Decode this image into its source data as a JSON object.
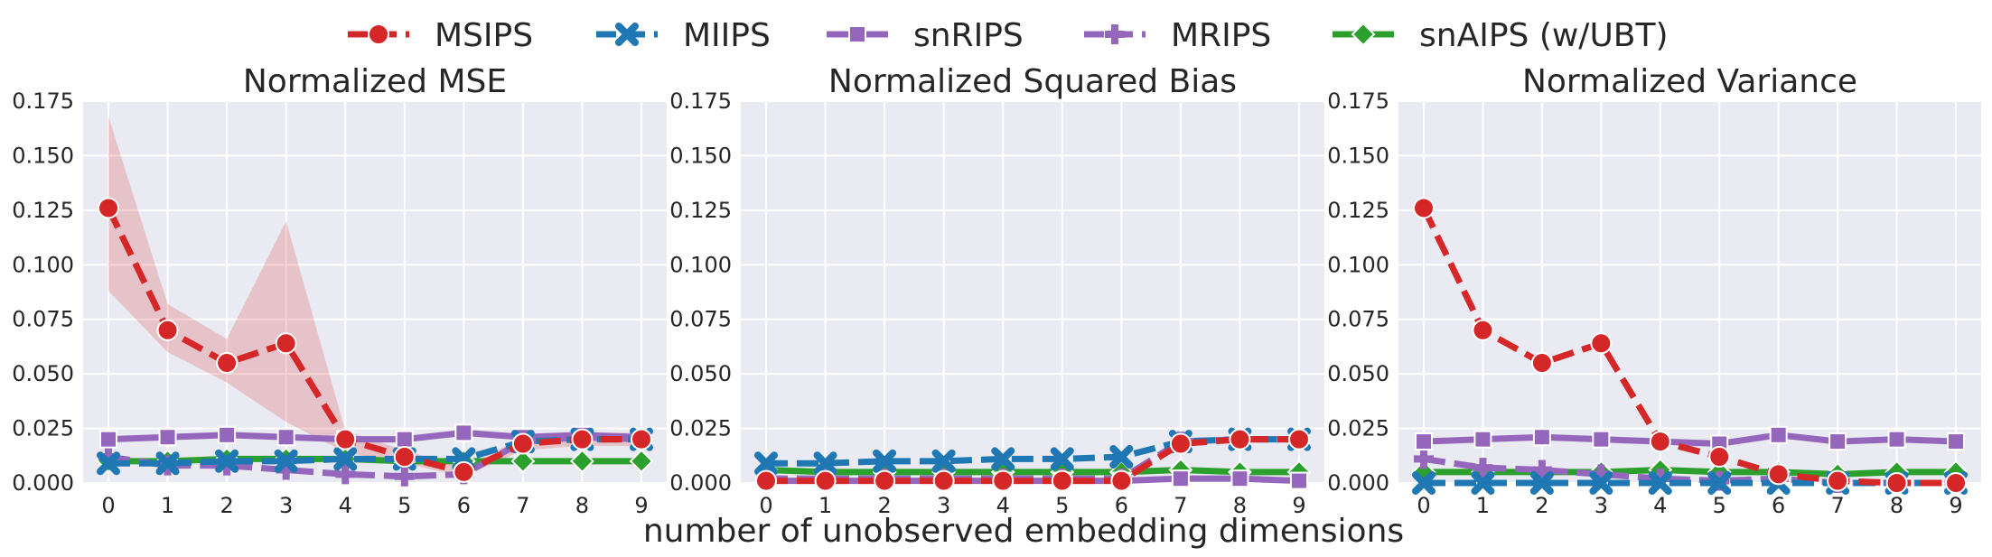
{
  "chart_data": {
    "type": "line",
    "xlabel": "number of unobserved embedding dimensions",
    "x": [
      0,
      1,
      2,
      3,
      4,
      5,
      6,
      7,
      8,
      9
    ],
    "ylim": [
      0,
      0.175
    ],
    "yticks": [
      "0.000",
      "0.025",
      "0.050",
      "0.075",
      "0.100",
      "0.125",
      "0.150",
      "0.175"
    ],
    "grid": true,
    "legend": {
      "placement": "top-center",
      "entries": [
        {
          "name": "MSIPS",
          "color": "#d62728",
          "linestyle": "dashed",
          "marker": "circle"
        },
        {
          "name": "MIIPS",
          "color": "#1f77b4",
          "linestyle": "dashed",
          "marker": "x"
        },
        {
          "name": "snRIPS",
          "color": "#9467bd",
          "linestyle": "solid",
          "marker": "square"
        },
        {
          "name": "MRIPS",
          "color": "#9467bd",
          "linestyle": "dashed",
          "marker": "plus"
        },
        {
          "name": "snAIPS (w/UBT)",
          "color": "#2ca02c",
          "linestyle": "solid",
          "marker": "diamond"
        }
      ]
    },
    "panels": [
      {
        "title": "Normalized MSE",
        "series": [
          {
            "name": "MSIPS",
            "values": [
              0.126,
              0.07,
              0.055,
              0.064,
              0.02,
              0.012,
              0.005,
              0.018,
              0.02,
              0.02
            ],
            "band_low": [
              0.088,
              0.06,
              0.046,
              0.028,
              0.014,
              0.009,
              0.003,
              0.015,
              0.017,
              0.017
            ],
            "band_high": [
              0.168,
              0.082,
              0.066,
              0.12,
              0.024,
              0.015,
              0.007,
              0.021,
              0.023,
              0.023
            ]
          },
          {
            "name": "MIIPS",
            "values": [
              0.009,
              0.009,
              0.01,
              0.01,
              0.011,
              0.011,
              0.011,
              0.019,
              0.02,
              0.02
            ]
          },
          {
            "name": "snRIPS",
            "values": [
              0.02,
              0.021,
              0.022,
              0.021,
              0.02,
              0.02,
              0.023,
              0.021,
              0.022,
              0.021
            ]
          },
          {
            "name": "MRIPS",
            "values": [
              0.012,
              0.008,
              0.008,
              0.006,
              0.004,
              0.003,
              0.004,
              0.019,
              0.021,
              0.02
            ]
          },
          {
            "name": "snAIPS (w/UBT)",
            "values": [
              0.01,
              0.01,
              0.011,
              0.011,
              0.011,
              0.01,
              0.01,
              0.01,
              0.01,
              0.01
            ]
          }
        ]
      },
      {
        "title": "Normalized Squared Bias",
        "series": [
          {
            "name": "MSIPS",
            "values": [
              0.001,
              0.001,
              0.001,
              0.001,
              0.001,
              0.001,
              0.001,
              0.018,
              0.02,
              0.02
            ]
          },
          {
            "name": "MIIPS",
            "values": [
              0.009,
              0.009,
              0.01,
              0.01,
              0.011,
              0.011,
              0.012,
              0.019,
              0.02,
              0.02
            ]
          },
          {
            "name": "snRIPS",
            "values": [
              0.001,
              0.001,
              0.001,
              0.001,
              0.001,
              0.001,
              0.001,
              0.002,
              0.002,
              0.001
            ]
          },
          {
            "name": "MRIPS",
            "values": [
              0.002,
              0.002,
              0.002,
              0.002,
              0.002,
              0.002,
              0.002,
              0.019,
              0.02,
              0.02
            ]
          },
          {
            "name": "snAIPS (w/UBT)",
            "values": [
              0.006,
              0.005,
              0.005,
              0.005,
              0.005,
              0.005,
              0.005,
              0.006,
              0.005,
              0.005
            ]
          }
        ]
      },
      {
        "title": "Normalized Variance",
        "series": [
          {
            "name": "MSIPS",
            "values": [
              0.126,
              0.07,
              0.055,
              0.064,
              0.019,
              0.012,
              0.004,
              0.001,
              0.0,
              0.0
            ]
          },
          {
            "name": "MIIPS",
            "values": [
              0.0,
              0.0,
              0.0,
              0.0,
              0.0,
              0.0,
              0.0,
              0.0,
              0.0,
              0.0
            ]
          },
          {
            "name": "snRIPS",
            "values": [
              0.019,
              0.02,
              0.021,
              0.02,
              0.019,
              0.018,
              0.022,
              0.019,
              0.02,
              0.019
            ]
          },
          {
            "name": "MRIPS",
            "values": [
              0.011,
              0.007,
              0.006,
              0.004,
              0.002,
              0.001,
              0.002,
              0.0,
              0.0,
              0.0
            ]
          },
          {
            "name": "snAIPS (w/UBT)",
            "values": [
              0.005,
              0.005,
              0.005,
              0.005,
              0.006,
              0.005,
              0.005,
              0.004,
              0.005,
              0.005
            ]
          }
        ]
      }
    ]
  }
}
